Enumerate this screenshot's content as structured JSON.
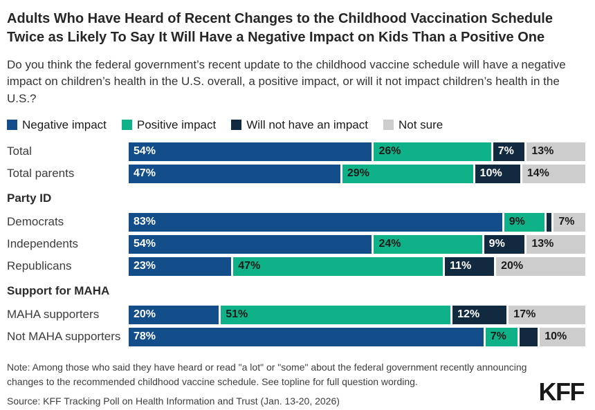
{
  "header": {
    "title": "Adults Who Have Heard of Recent Changes to the Childhood Vaccination Schedule Twice as Likely To Say It Will Have a Negative Impact on Kids Than a Positive One",
    "subtitle": "Do you think the federal government’s recent update to the childhood vaccine schedule will have a negative impact on children’s health in the U.S. overall, a positive impact, or will it not impact children’s health in the U.S.?"
  },
  "chart_data": {
    "type": "bar",
    "stacked": true,
    "orientation": "horizontal",
    "unit": "%",
    "xlim": [
      0,
      100
    ],
    "legend_position": "top",
    "grid": false,
    "series": [
      {
        "name": "Negative impact",
        "color": "#134e8a",
        "label_color": "#ffffff"
      },
      {
        "name": "Positive impact",
        "color": "#0fb288",
        "label_color": "#1a1a1a"
      },
      {
        "name": "Will not have an impact",
        "color": "#112a3f",
        "label_color": "#ffffff"
      },
      {
        "name": "Not sure",
        "color": "#cdcdcd",
        "label_color": "#1a1a1a"
      }
    ],
    "rows": [
      {
        "type": "bar",
        "category": "Total",
        "values": [
          54,
          26,
          7,
          13
        ],
        "labels": [
          "54%",
          "26%",
          "7%",
          "13%"
        ]
      },
      {
        "type": "bar",
        "category": "Total parents",
        "values": [
          47,
          29,
          10,
          14
        ],
        "labels": [
          "47%",
          "29%",
          "10%",
          "14%"
        ]
      },
      {
        "type": "section",
        "label": "Party ID"
      },
      {
        "type": "bar",
        "category": "Democrats",
        "values": [
          83,
          9,
          1,
          7
        ],
        "labels": [
          "83%",
          "9%",
          "",
          "7%"
        ]
      },
      {
        "type": "bar",
        "category": "Independents",
        "values": [
          54,
          24,
          9,
          13
        ],
        "labels": [
          "54%",
          "24%",
          "9%",
          "13%"
        ]
      },
      {
        "type": "bar",
        "category": "Republicans",
        "values": [
          23,
          47,
          11,
          20
        ],
        "labels": [
          "23%",
          "47%",
          "11%",
          "20%"
        ]
      },
      {
        "type": "section",
        "label": "Support for MAHA"
      },
      {
        "type": "bar",
        "category": "MAHA supporters",
        "values": [
          20,
          51,
          12,
          17
        ],
        "labels": [
          "20%",
          "51%",
          "12%",
          "17%"
        ]
      },
      {
        "type": "bar",
        "category": "Not MAHA supporters",
        "values": [
          78,
          7,
          4,
          10
        ],
        "labels": [
          "78%",
          "7%",
          "",
          "10%"
        ]
      }
    ]
  },
  "footer": {
    "note": "Note: Among those who said they have heard or read \"a lot\" or \"some\" about the federal government recently announcing changes to the recommended childhood vaccine schedule. See topline for full question wording.",
    "source": "Source: KFF Tracking Poll on Health Information and Trust (Jan. 13-20, 2026)",
    "logo": "KFF"
  }
}
